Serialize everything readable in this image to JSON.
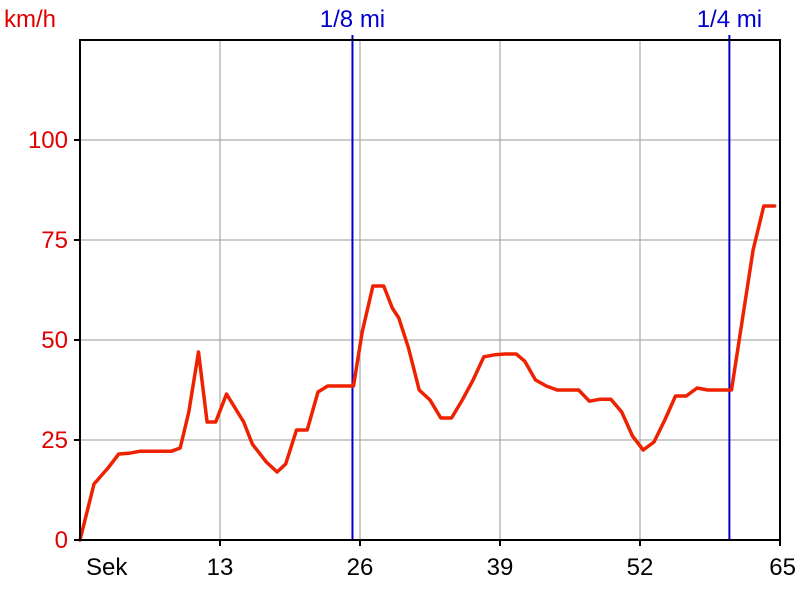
{
  "chart_data": {
    "type": "line",
    "ylabel": "km/h",
    "xlabel": "Sek",
    "xlim": [
      0,
      65
    ],
    "ylim": [
      0,
      125
    ],
    "grid": true,
    "x_ticks": [
      {
        "value": 13,
        "label": "13"
      },
      {
        "value": 26,
        "label": "26"
      },
      {
        "value": 39,
        "label": "39"
      },
      {
        "value": 52,
        "label": "52"
      },
      {
        "value": 65,
        "label": "65"
      }
    ],
    "y_ticks": [
      {
        "value": 0,
        "label": "0"
      },
      {
        "value": 25,
        "label": "25"
      },
      {
        "value": 50,
        "label": "50"
      },
      {
        "value": 75,
        "label": "75"
      },
      {
        "value": 100,
        "label": "100"
      }
    ],
    "markers": [
      {
        "x": 25.3,
        "label": "1/8 mi"
      },
      {
        "x": 60.3,
        "label": "1/4 mi"
      }
    ],
    "series": [
      {
        "color": "#ee2200",
        "points": [
          [
            0,
            0
          ],
          [
            1.3,
            14
          ],
          [
            2.6,
            18
          ],
          [
            3.6,
            21.5
          ],
          [
            4.6,
            21.7
          ],
          [
            5.6,
            22.2
          ],
          [
            7,
            22.2
          ],
          [
            8.5,
            22.2
          ],
          [
            9.3,
            23
          ],
          [
            10.1,
            32
          ],
          [
            11,
            47
          ],
          [
            11.8,
            29.5
          ],
          [
            12.6,
            29.5
          ],
          [
            13.6,
            36.5
          ],
          [
            15.2,
            29.5
          ],
          [
            16,
            24
          ],
          [
            17.3,
            19.5
          ],
          [
            18.3,
            17
          ],
          [
            19.1,
            19
          ],
          [
            20.1,
            27.5
          ],
          [
            21.1,
            27.5
          ],
          [
            22.1,
            37
          ],
          [
            23,
            38.5
          ],
          [
            24.3,
            38.5
          ],
          [
            25.4,
            38.5
          ],
          [
            26.2,
            52
          ],
          [
            27.2,
            63.5
          ],
          [
            28.2,
            63.5
          ],
          [
            29,
            58
          ],
          [
            29.6,
            55.5
          ],
          [
            30.5,
            48
          ],
          [
            31.5,
            37.5
          ],
          [
            32.5,
            35
          ],
          [
            33.5,
            30.5
          ],
          [
            34.5,
            30.5
          ],
          [
            35.5,
            35
          ],
          [
            36.5,
            40
          ],
          [
            37.5,
            45.8
          ],
          [
            38.5,
            46.3
          ],
          [
            39.5,
            46.5
          ],
          [
            40.5,
            46.5
          ],
          [
            41.3,
            44.7
          ],
          [
            42.3,
            40
          ],
          [
            43.3,
            38.5
          ],
          [
            44.3,
            37.5
          ],
          [
            45.3,
            37.5
          ],
          [
            46.3,
            37.5
          ],
          [
            47.3,
            34.7
          ],
          [
            48.3,
            35.2
          ],
          [
            49.3,
            35.2
          ],
          [
            50.3,
            32
          ],
          [
            51.3,
            26
          ],
          [
            52.3,
            22.5
          ],
          [
            53.3,
            24.5
          ],
          [
            54.3,
            30
          ],
          [
            55.3,
            36
          ],
          [
            56.3,
            36
          ],
          [
            57.3,
            38
          ],
          [
            58.3,
            37.5
          ],
          [
            59.3,
            37.5
          ],
          [
            60.5,
            37.5
          ],
          [
            61.5,
            55
          ],
          [
            62.5,
            72.5
          ],
          [
            63.5,
            83.5
          ],
          [
            64.5,
            83.5
          ]
        ]
      }
    ]
  }
}
